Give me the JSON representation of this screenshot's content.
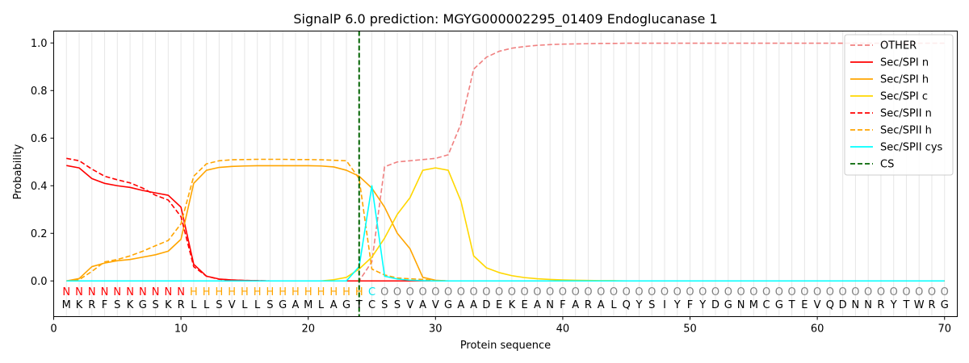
{
  "chart_data": {
    "type": "line",
    "title": "SignalP 6.0 prediction: MGYG000002295_01409 Endoglucanase 1",
    "xlabel": "Protein sequence",
    "ylabel": "Probability",
    "xlim": [
      0,
      71
    ],
    "ylim": [
      -0.15,
      1.05
    ],
    "xticks": [
      0,
      10,
      20,
      30,
      40,
      50,
      60,
      70
    ],
    "yticks": [
      0.0,
      0.2,
      0.4,
      0.6,
      0.8,
      1.0
    ],
    "grid": "vertical lines at each residue",
    "legend_position": "top-right",
    "cleavage_site": 24,
    "sequence": [
      "M",
      "K",
      "R",
      "F",
      "S",
      "K",
      "G",
      "S",
      "K",
      "R",
      "L",
      "L",
      "S",
      "V",
      "L",
      "L",
      "S",
      "G",
      "A",
      "M",
      "L",
      "A",
      "G",
      "T",
      "C",
      "S",
      "S",
      "V",
      "A",
      "V",
      "G",
      "A",
      "A",
      "D",
      "E",
      "K",
      "E",
      "A",
      "N",
      "F",
      "A",
      "R",
      "A",
      "L",
      "Q",
      "Y",
      "S",
      "I",
      "Y",
      "F",
      "Y",
      "D",
      "G",
      "N",
      "M",
      "C",
      "G",
      "T",
      "E",
      "V",
      "Q",
      "D",
      "N",
      "N",
      "R",
      "Y",
      "T",
      "W",
      "R",
      "G"
    ],
    "labels": [
      "N",
      "N",
      "N",
      "N",
      "N",
      "N",
      "N",
      "N",
      "N",
      "N",
      "H",
      "H",
      "H",
      "H",
      "H",
      "H",
      "H",
      "H",
      "H",
      "H",
      "H",
      "H",
      "H",
      "H",
      "C",
      "O",
      "O",
      "O",
      "O",
      "O",
      "O",
      "O",
      "O",
      "O",
      "O",
      "O",
      "O",
      "O",
      "O",
      "O",
      "O",
      "O",
      "O",
      "O",
      "O",
      "O",
      "O",
      "O",
      "O",
      "O",
      "O",
      "O",
      "O",
      "O",
      "O",
      "O",
      "O",
      "O",
      "O",
      "O",
      "O",
      "O",
      "O",
      "O",
      "O",
      "O",
      "O",
      "O",
      "O",
      "O"
    ],
    "label_colors": {
      "N": "#ff0000",
      "H": "#ffa500",
      "C": "#00e5ee",
      "O": "#808080"
    },
    "series": [
      {
        "name": "OTHER",
        "color": "#f08080",
        "dash": "dashed",
        "values": [
          0.0,
          0.0,
          0.0,
          0.0,
          0.0,
          0.0,
          0.0,
          0.0,
          0.0,
          0.0,
          0.0,
          0.0,
          0.0,
          0.0,
          0.0,
          0.0,
          0.0,
          0.0,
          0.0,
          0.0,
          0.0,
          0.0,
          0.0,
          0.0,
          0.08,
          0.48,
          0.5,
          0.505,
          0.51,
          0.515,
          0.53,
          0.66,
          0.89,
          0.94,
          0.965,
          0.978,
          0.985,
          0.99,
          0.993,
          0.995,
          0.996,
          0.997,
          0.998,
          0.998,
          0.999,
          0.999,
          0.999,
          0.999,
          0.999,
          0.999,
          0.999,
          0.999,
          0.999,
          0.999,
          0.999,
          0.999,
          0.999,
          0.999,
          0.999,
          0.999,
          0.999,
          0.999,
          0.999,
          0.999,
          0.999,
          0.999,
          0.999,
          0.999,
          0.999,
          0.999
        ]
      },
      {
        "name": "Sec/SPI n",
        "color": "#ff0000",
        "dash": "solid",
        "values": [
          0.485,
          0.475,
          0.43,
          0.41,
          0.4,
          0.393,
          0.38,
          0.37,
          0.36,
          0.31,
          0.07,
          0.02,
          0.008,
          0.004,
          0.002,
          0.001,
          0.0,
          0.0,
          0.0,
          0.0,
          0.0,
          0.0,
          0.0,
          0.0,
          0.0,
          0.0,
          0.0,
          0.0,
          0.0,
          0.0,
          0.0,
          0.0,
          0.0,
          0.0,
          0.0,
          0.0,
          0.0,
          0.0,
          0.0,
          0.0,
          0.0,
          0.0,
          0.0,
          0.0,
          0.0,
          0.0,
          0.0,
          0.0,
          0.0,
          0.0,
          0.0,
          0.0,
          0.0,
          0.0,
          0.0,
          0.0,
          0.0,
          0.0,
          0.0,
          0.0,
          0.0,
          0.0,
          0.0,
          0.0,
          0.0,
          0.0,
          0.0,
          0.0,
          0.0,
          0.0
        ]
      },
      {
        "name": "Sec/SPI h",
        "color": "#ffa500",
        "dash": "solid",
        "values": [
          0.0,
          0.01,
          0.06,
          0.075,
          0.085,
          0.09,
          0.1,
          0.11,
          0.125,
          0.175,
          0.41,
          0.465,
          0.477,
          0.481,
          0.483,
          0.484,
          0.484,
          0.484,
          0.484,
          0.484,
          0.483,
          0.479,
          0.465,
          0.44,
          0.39,
          0.31,
          0.2,
          0.135,
          0.015,
          0.003,
          0.0,
          0.0,
          0.0,
          0.0,
          0.0,
          0.0,
          0.0,
          0.0,
          0.0,
          0.0,
          0.0,
          0.0,
          0.0,
          0.0,
          0.0,
          0.0,
          0.0,
          0.0,
          0.0,
          0.0,
          0.0,
          0.0,
          0.0,
          0.0,
          0.0,
          0.0,
          0.0,
          0.0,
          0.0,
          0.0,
          0.0,
          0.0,
          0.0,
          0.0,
          0.0,
          0.0,
          0.0,
          0.0,
          0.0,
          0.0
        ]
      },
      {
        "name": "Sec/SPI c",
        "color": "#ffd700",
        "dash": "solid",
        "values": [
          0.0,
          0.0,
          0.0,
          0.0,
          0.0,
          0.0,
          0.0,
          0.0,
          0.0,
          0.0,
          0.0,
          0.0,
          0.0,
          0.0,
          0.0,
          0.0,
          0.0,
          0.0,
          0.0,
          0.0,
          0.0,
          0.005,
          0.015,
          0.05,
          0.1,
          0.18,
          0.28,
          0.35,
          0.465,
          0.475,
          0.465,
          0.335,
          0.105,
          0.055,
          0.035,
          0.022,
          0.014,
          0.009,
          0.006,
          0.004,
          0.003,
          0.002,
          0.001,
          0.001,
          0.0,
          0.0,
          0.0,
          0.0,
          0.0,
          0.0,
          0.0,
          0.0,
          0.0,
          0.0,
          0.0,
          0.0,
          0.0,
          0.0,
          0.0,
          0.0,
          0.0,
          0.0,
          0.0,
          0.0,
          0.0,
          0.0,
          0.0,
          0.0,
          0.0,
          0.0
        ]
      },
      {
        "name": "Sec/SPII n",
        "color": "#ff0000",
        "dash": "dashed",
        "values": [
          0.515,
          0.505,
          0.47,
          0.44,
          0.425,
          0.412,
          0.39,
          0.36,
          0.34,
          0.27,
          0.06,
          0.02,
          0.007,
          0.004,
          0.002,
          0.001,
          0.0,
          0.0,
          0.0,
          0.0,
          0.0,
          0.0,
          0.0,
          0.0,
          0.0,
          0.0,
          0.0,
          0.0,
          0.0,
          0.0,
          0.0,
          0.0,
          0.0,
          0.0,
          0.0,
          0.0,
          0.0,
          0.0,
          0.0,
          0.0,
          0.0,
          0.0,
          0.0,
          0.0,
          0.0,
          0.0,
          0.0,
          0.0,
          0.0,
          0.0,
          0.0,
          0.0,
          0.0,
          0.0,
          0.0,
          0.0,
          0.0,
          0.0,
          0.0,
          0.0,
          0.0,
          0.0,
          0.0,
          0.0,
          0.0,
          0.0,
          0.0,
          0.0,
          0.0,
          0.0
        ]
      },
      {
        "name": "Sec/SPII h",
        "color": "#ffa500",
        "dash": "dashed",
        "values": [
          0.0,
          0.005,
          0.04,
          0.08,
          0.09,
          0.105,
          0.125,
          0.148,
          0.17,
          0.24,
          0.44,
          0.492,
          0.505,
          0.509,
          0.51,
          0.511,
          0.511,
          0.511,
          0.51,
          0.51,
          0.509,
          0.507,
          0.505,
          0.43,
          0.05,
          0.025,
          0.012,
          0.009,
          0.006,
          0.002,
          0.0,
          0.0,
          0.0,
          0.0,
          0.0,
          0.0,
          0.0,
          0.0,
          0.0,
          0.0,
          0.0,
          0.0,
          0.0,
          0.0,
          0.0,
          0.0,
          0.0,
          0.0,
          0.0,
          0.0,
          0.0,
          0.0,
          0.0,
          0.0,
          0.0,
          0.0,
          0.0,
          0.0,
          0.0,
          0.0,
          0.0,
          0.0,
          0.0,
          0.0,
          0.0,
          0.0,
          0.0,
          0.0,
          0.0,
          0.0
        ]
      },
      {
        "name": "Sec/SPII cys",
        "color": "#00ffff",
        "dash": "solid",
        "values": [
          0.0,
          0.0,
          0.0,
          0.0,
          0.0,
          0.0,
          0.0,
          0.0,
          0.0,
          0.0,
          0.0,
          0.0,
          0.0,
          0.0,
          0.0,
          0.0,
          0.0,
          0.0,
          0.0,
          0.0,
          0.0,
          0.0,
          0.0,
          0.06,
          0.4,
          0.02,
          0.008,
          0.003,
          0.001,
          0.0,
          0.0,
          0.0,
          0.0,
          0.0,
          0.0,
          0.0,
          0.0,
          0.0,
          0.0,
          0.0,
          0.0,
          0.0,
          0.0,
          0.0,
          0.0,
          0.0,
          0.0,
          0.0,
          0.0,
          0.0,
          0.0,
          0.0,
          0.0,
          0.0,
          0.0,
          0.0,
          0.0,
          0.0,
          0.0,
          0.0,
          0.0,
          0.0,
          0.0,
          0.0,
          0.0,
          0.0,
          0.0,
          0.0,
          0.0,
          0.0
        ]
      }
    ],
    "legend": [
      {
        "name": "OTHER",
        "color": "#f08080",
        "dash": "dashed"
      },
      {
        "name": "Sec/SPI n",
        "color": "#ff0000",
        "dash": "solid"
      },
      {
        "name": "Sec/SPI h",
        "color": "#ffa500",
        "dash": "solid"
      },
      {
        "name": "Sec/SPI c",
        "color": "#ffd700",
        "dash": "solid"
      },
      {
        "name": "Sec/SPII n",
        "color": "#ff0000",
        "dash": "dashed"
      },
      {
        "name": "Sec/SPII h",
        "color": "#ffa500",
        "dash": "dashed"
      },
      {
        "name": "Sec/SPII cys",
        "color": "#00ffff",
        "dash": "solid"
      },
      {
        "name": "CS",
        "color": "#006400",
        "dash": "dashed"
      }
    ]
  }
}
